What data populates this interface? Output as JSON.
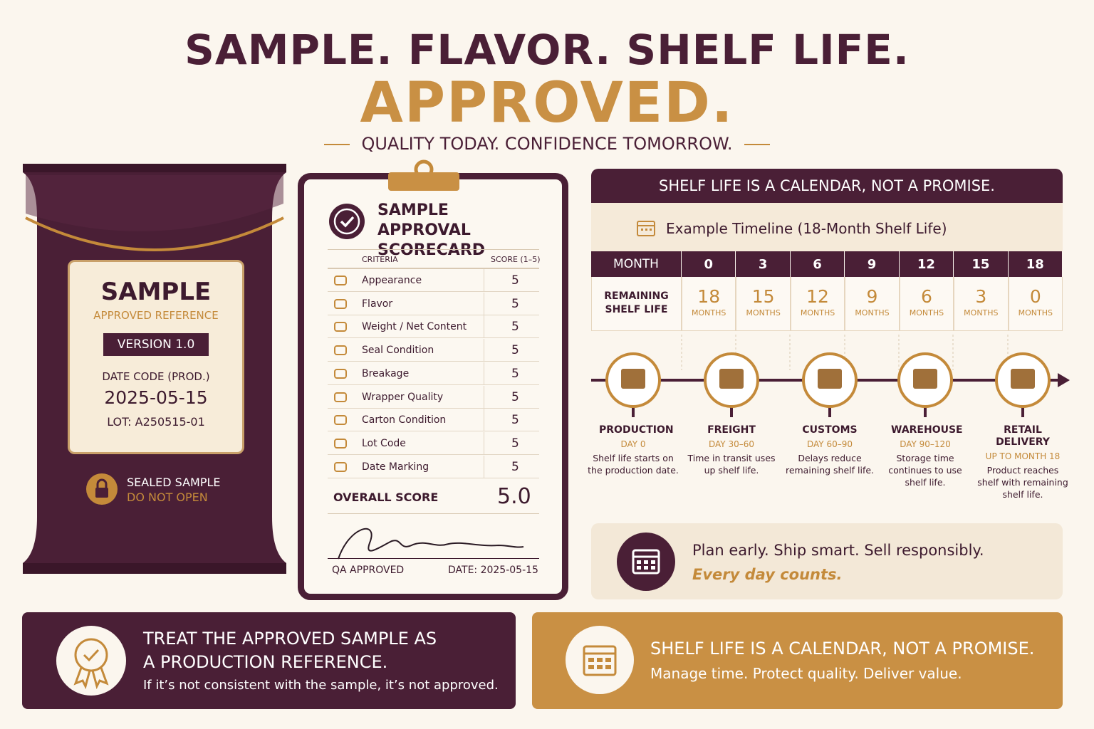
{
  "header": {
    "title_line1": "SAMPLE. FLAVOR. SHELF LIFE.",
    "title_line2": "APPROVED.",
    "tagline": "QUALITY TODAY. CONFIDENCE TOMORROW."
  },
  "sample_pack": {
    "label": "SAMPLE",
    "sublabel": "APPROVED REFERENCE",
    "version": "VERSION 1.0",
    "date_code_label": "DATE CODE (PROD.)",
    "date_code": "2025-05-15",
    "lot": "LOT: A250515-01",
    "seal_line1": "SEALED SAMPLE",
    "seal_line2": "DO NOT OPEN"
  },
  "scorecard": {
    "title": "SAMPLE APPROVAL SCORECARD",
    "columns": [
      "CRITERIA",
      "SCORE (1–5)"
    ],
    "rows": [
      [
        "Appearance",
        5
      ],
      [
        "Flavor",
        5
      ],
      [
        "Weight / Net Content",
        5
      ],
      [
        "Seal Condition",
        5
      ],
      [
        "Breakage",
        5
      ],
      [
        "Wrapper Quality",
        5
      ],
      [
        "Carton Condition",
        5
      ],
      [
        "Lot Code",
        5
      ],
      [
        "Date Marking",
        5
      ]
    ],
    "overall_label": "OVERALL SCORE",
    "overall": "5.0",
    "signature_label": "QA APPROVED",
    "date": "DATE: 2025-05-15"
  },
  "timeline": {
    "title": "SHELF LIFE IS A CALENDAR, NOT A PROMISE.",
    "subtitle": "Example Timeline (18-Month Shelf Life)",
    "month_label": "MONTH",
    "remaining_label": "REMAINING SHELF LIFE",
    "unit": "MONTHS",
    "months": [
      0,
      3,
      6,
      9,
      12,
      15,
      18
    ],
    "remaining": [
      18,
      15,
      12,
      9,
      6,
      3,
      0
    ],
    "stages": [
      {
        "name": "PRODUCTION",
        "days": "DAY 0",
        "desc": "Shelf life starts on the production date."
      },
      {
        "name": "FREIGHT",
        "days": "DAY 30–60",
        "desc": "Time in transit uses up shelf life."
      },
      {
        "name": "CUSTOMS",
        "days": "DAY 60–90",
        "desc": "Delays reduce remaining shelf life."
      },
      {
        "name": "WAREHOUSE",
        "days": "DAY 90–120",
        "desc": "Storage time continues to use shelf life."
      },
      {
        "name": "RETAIL DELIVERY",
        "days": "UP TO MONTH 18",
        "desc": "Product reaches shelf with remaining shelf life."
      }
    ],
    "callout_line1": "Plan early. Ship smart. Sell responsibly.",
    "callout_line2": "Every day counts."
  },
  "footer": {
    "left_title": "TREAT THE APPROVED SAMPLE AS A PRODUCTION REFERENCE.",
    "left_text": "If it’s not consistent with the sample, it’s not approved.",
    "right_title": "SHELF LIFE IS A CALENDAR, NOT A PROMISE.",
    "right_text": "Manage time. Protect quality. Deliver value."
  }
}
